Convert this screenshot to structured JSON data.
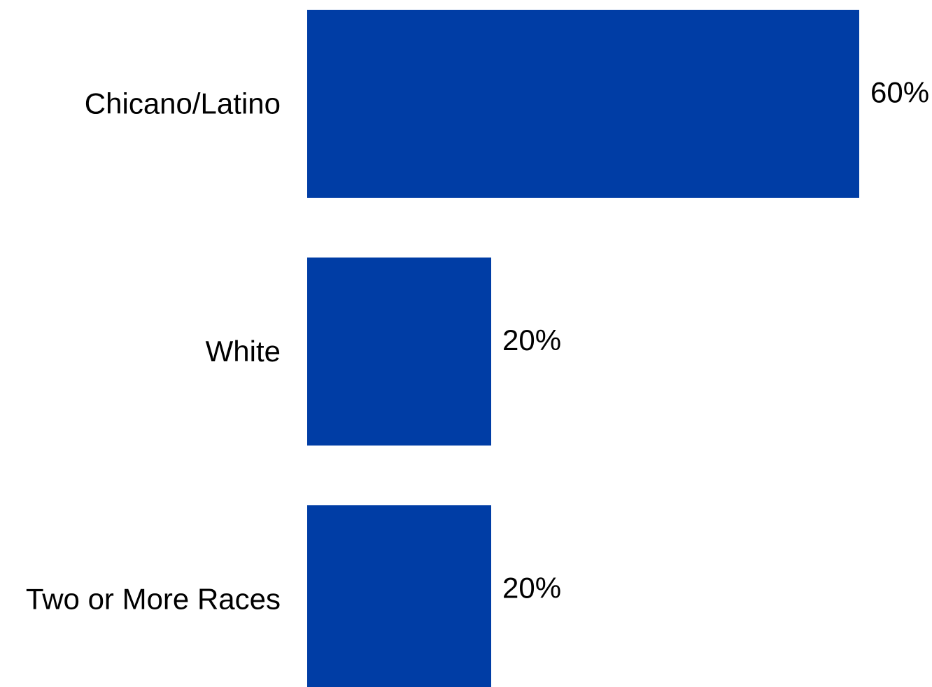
{
  "chart_data": {
    "type": "bar",
    "orientation": "horizontal",
    "categories": [
      "Chicano/Latino",
      "White",
      "Two or More Races"
    ],
    "values": [
      60,
      20,
      20
    ],
    "value_labels": [
      "60%",
      "20%",
      "20%"
    ],
    "unit": "%",
    "xlim": [
      0,
      60
    ],
    "grid": false,
    "legend": "none",
    "title": "",
    "xlabel": "",
    "ylabel": "",
    "colors": {
      "bar": "#003da5",
      "text": "#000000",
      "background": "#ffffff"
    }
  }
}
